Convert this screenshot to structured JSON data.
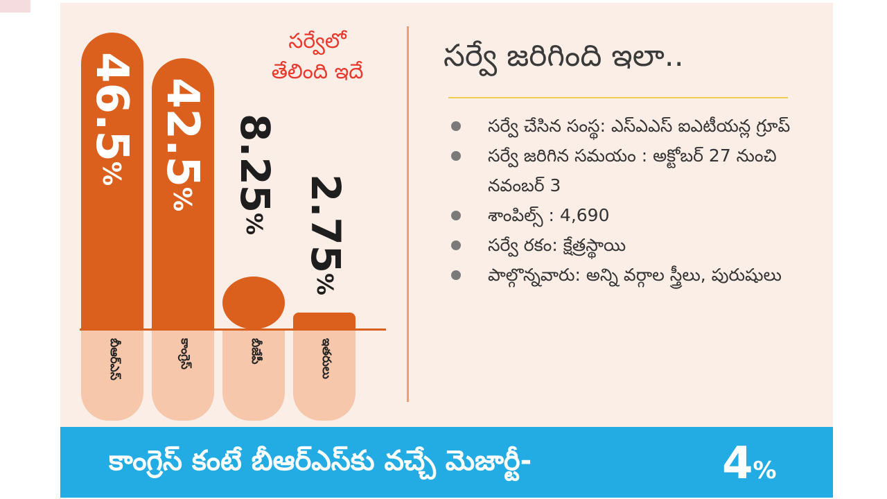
{
  "chart_data": {
    "type": "bar",
    "title": "సర్వేలో తేలింది ఇదే",
    "categories": [
      "బీఆర్ఎస్",
      "కాంగ్రెస్",
      "బీజేపీ",
      "ఇతరులు"
    ],
    "values": [
      46.5,
      42.5,
      8.25,
      2.75
    ],
    "value_labels": [
      "46.5",
      "42.5",
      "8.25",
      "2.75"
    ],
    "unit": "%",
    "ylim": [
      0,
      50
    ],
    "grid": false,
    "colors": {
      "bar": "#db5f1d",
      "category_box": "#f6c7ab",
      "background": "#fbeee7"
    }
  },
  "subtitle_line1": "సర్వేలో",
  "subtitle_line2": "తేలింది ఇదే",
  "info": {
    "title": "సర్వే జరిగింది ఇలా..",
    "items": [
      "సర్వే చేసిన సంస్థ: ఎస్‌ఎఎస్ ఐఎటీయన్ల గ్రూప్",
      "సర్వే జరిగిన సమయం : అక్టోబర్ 27 నుంచి నవంబర్ 3",
      "శాంపిల్స్ : 4,690",
      "సర్వే రకం: క్షేత్రస్థాయి",
      "పాల్గొన్నవారు: అన్ని వర్గాల స్త్రీలు, పురుషులు"
    ]
  },
  "footer": {
    "text": "కాంగ్రెస్ కంటే బీఆర్ఎస్‌కు వచ్చే మెజార్టీ-",
    "value": "4",
    "unit": "%",
    "color": "#22ace3"
  }
}
